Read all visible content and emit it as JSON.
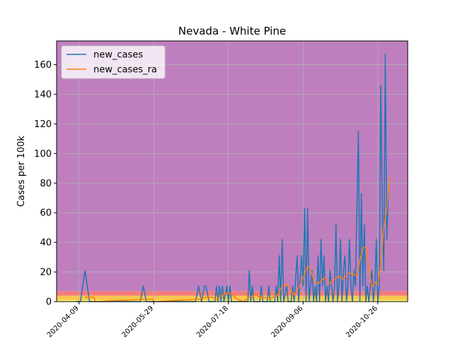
{
  "chart_data": {
    "type": "line",
    "title": "Nevada - White Pine",
    "xlabel": "",
    "ylabel": "Cases per 100k",
    "x_range": [
      "2020-03-25",
      "2020-11-15"
    ],
    "ylim": [
      0,
      176
    ],
    "x_ticks": [
      "2020-04-09",
      "2020-05-29",
      "2020-07-18",
      "2020-09-06",
      "2020-10-26"
    ],
    "y_ticks": [
      0,
      20,
      40,
      60,
      80,
      100,
      120,
      140,
      160
    ],
    "grid": true,
    "legend_position": "top-left",
    "background_bands": [
      {
        "from": 0,
        "to": 1,
        "color": "#ffff66"
      },
      {
        "from": 1,
        "to": 4,
        "color": "#f9c74f"
      },
      {
        "from": 4,
        "to": 7,
        "color": "#f47a7a"
      },
      {
        "from": 7,
        "to": 176,
        "color": "#bf7fbf"
      }
    ],
    "series": [
      {
        "name": "new_cases",
        "color": "#1f77b4",
        "points": [
          [
            "2020-04-07",
            0
          ],
          [
            "2020-04-10",
            0
          ],
          [
            "2020-04-13",
            21
          ],
          [
            "2020-04-16",
            0
          ],
          [
            "2020-05-20",
            0
          ],
          [
            "2020-05-22",
            10.5
          ],
          [
            "2020-05-24",
            0
          ],
          [
            "2020-06-26",
            0
          ],
          [
            "2020-06-28",
            10.5
          ],
          [
            "2020-06-30",
            0
          ],
          [
            "2020-07-02",
            10.5
          ],
          [
            "2020-07-03",
            10.5
          ],
          [
            "2020-07-05",
            0
          ],
          [
            "2020-07-09",
            0
          ],
          [
            "2020-07-10",
            10.5
          ],
          [
            "2020-07-11",
            0
          ],
          [
            "2020-07-12",
            10.5
          ],
          [
            "2020-07-13",
            0
          ],
          [
            "2020-07-14",
            10.5
          ],
          [
            "2020-07-15",
            0
          ],
          [
            "2020-07-17",
            10.5
          ],
          [
            "2020-07-18",
            0
          ],
          [
            "2020-07-19",
            10.5
          ],
          [
            "2020-07-20",
            0
          ],
          [
            "2020-07-31",
            0
          ],
          [
            "2020-08-01",
            21
          ],
          [
            "2020-08-02",
            0
          ],
          [
            "2020-08-03",
            10.5
          ],
          [
            "2020-08-04",
            0
          ],
          [
            "2020-08-08",
            0
          ],
          [
            "2020-08-09",
            10.5
          ],
          [
            "2020-08-10",
            0
          ],
          [
            "2020-08-13",
            0
          ],
          [
            "2020-08-14",
            10.5
          ],
          [
            "2020-08-15",
            0
          ],
          [
            "2020-08-18",
            0
          ],
          [
            "2020-08-19",
            10.5
          ],
          [
            "2020-08-20",
            0
          ],
          [
            "2020-08-21",
            31
          ],
          [
            "2020-08-22",
            0
          ],
          [
            "2020-08-23",
            42
          ],
          [
            "2020-08-24",
            0
          ],
          [
            "2020-08-26",
            10.5
          ],
          [
            "2020-08-27",
            0
          ],
          [
            "2020-08-29",
            0
          ],
          [
            "2020-08-30",
            10.5
          ],
          [
            "2020-08-31",
            0
          ],
          [
            "2020-09-02",
            31
          ],
          [
            "2020-09-03",
            0
          ],
          [
            "2020-09-05",
            31
          ],
          [
            "2020-09-06",
            10.5
          ],
          [
            "2020-09-07",
            63
          ],
          [
            "2020-09-08",
            0
          ],
          [
            "2020-09-09",
            63
          ],
          [
            "2020-09-10",
            0
          ],
          [
            "2020-09-12",
            21
          ],
          [
            "2020-09-13",
            0
          ],
          [
            "2020-09-14",
            10.5
          ],
          [
            "2020-09-15",
            0
          ],
          [
            "2020-09-16",
            31
          ],
          [
            "2020-09-17",
            0
          ],
          [
            "2020-09-18",
            42
          ],
          [
            "2020-09-19",
            10.5
          ],
          [
            "2020-09-20",
            31
          ],
          [
            "2020-09-21",
            0
          ],
          [
            "2020-09-22",
            10.5
          ],
          [
            "2020-09-23",
            0
          ],
          [
            "2020-09-24",
            21
          ],
          [
            "2020-09-25",
            10.5
          ],
          [
            "2020-09-26",
            0
          ],
          [
            "2020-09-27",
            10.5
          ],
          [
            "2020-09-28",
            52
          ],
          [
            "2020-09-29",
            0
          ],
          [
            "2020-09-30",
            10.5
          ],
          [
            "2020-10-01",
            42
          ],
          [
            "2020-10-02",
            0
          ],
          [
            "2020-10-03",
            21
          ],
          [
            "2020-10-04",
            31
          ],
          [
            "2020-10-05",
            0
          ],
          [
            "2020-10-06",
            10.5
          ],
          [
            "2020-10-07",
            42
          ],
          [
            "2020-10-08",
            10.5
          ],
          [
            "2020-10-09",
            0
          ],
          [
            "2020-10-10",
            21
          ],
          [
            "2020-10-11",
            10.5
          ],
          [
            "2020-10-13",
            115
          ],
          [
            "2020-10-14",
            0
          ],
          [
            "2020-10-15",
            73
          ],
          [
            "2020-10-16",
            10.5
          ],
          [
            "2020-10-17",
            52
          ],
          [
            "2020-10-18",
            0
          ],
          [
            "2020-10-19",
            10.5
          ],
          [
            "2020-10-20",
            0
          ],
          [
            "2020-10-21",
            10.5
          ],
          [
            "2020-10-22",
            21
          ],
          [
            "2020-10-23",
            0
          ],
          [
            "2020-10-24",
            10.5
          ],
          [
            "2020-10-25",
            42
          ],
          [
            "2020-10-26",
            0
          ],
          [
            "2020-10-27",
            10.5
          ],
          [
            "2020-10-28",
            146
          ],
          [
            "2020-10-29",
            63
          ],
          [
            "2020-10-30",
            21
          ],
          [
            "2020-10-31",
            167
          ],
          [
            "2020-11-01",
            42
          ],
          [
            "2020-11-02",
            73
          ],
          [
            "2020-11-03",
            73
          ]
        ]
      },
      {
        "name": "new_cases_ra",
        "color": "#ff7f0e",
        "points": [
          [
            "2020-04-13",
            3
          ],
          [
            "2020-04-19",
            3
          ],
          [
            "2020-04-20",
            0
          ],
          [
            "2020-05-22",
            1.5
          ],
          [
            "2020-05-28",
            1.5
          ],
          [
            "2020-05-29",
            0
          ],
          [
            "2020-06-28",
            1.5
          ],
          [
            "2020-07-03",
            3
          ],
          [
            "2020-07-07",
            3
          ],
          [
            "2020-07-10",
            1.5
          ],
          [
            "2020-07-14",
            4.5
          ],
          [
            "2020-07-18",
            6
          ],
          [
            "2020-07-21",
            4.5
          ],
          [
            "2020-07-24",
            1.5
          ],
          [
            "2020-07-28",
            0
          ],
          [
            "2020-08-01",
            3
          ],
          [
            "2020-08-05",
            4.5
          ],
          [
            "2020-08-08",
            3
          ],
          [
            "2020-08-11",
            3
          ],
          [
            "2020-08-14",
            1.5
          ],
          [
            "2020-08-17",
            3
          ],
          [
            "2020-08-20",
            4.5
          ],
          [
            "2020-08-23",
            10.5
          ],
          [
            "2020-08-25",
            12
          ],
          [
            "2020-08-28",
            9
          ],
          [
            "2020-08-31",
            4.5
          ],
          [
            "2020-09-03",
            9
          ],
          [
            "2020-09-06",
            16
          ],
          [
            "2020-09-09",
            24
          ],
          [
            "2020-09-11",
            22
          ],
          [
            "2020-09-13",
            15
          ],
          [
            "2020-09-16",
            12
          ],
          [
            "2020-09-19",
            15
          ],
          [
            "2020-09-21",
            16
          ],
          [
            "2020-09-24",
            12
          ],
          [
            "2020-09-27",
            15
          ],
          [
            "2020-09-30",
            17
          ],
          [
            "2020-10-03",
            15
          ],
          [
            "2020-10-06",
            19
          ],
          [
            "2020-10-09",
            19
          ],
          [
            "2020-10-12",
            17
          ],
          [
            "2020-10-14",
            28
          ],
          [
            "2020-10-16",
            36
          ],
          [
            "2020-10-18",
            37
          ],
          [
            "2020-10-20",
            22
          ],
          [
            "2020-10-22",
            10
          ],
          [
            "2020-10-24",
            13
          ],
          [
            "2020-10-26",
            12
          ],
          [
            "2020-10-28",
            25
          ],
          [
            "2020-10-30",
            50
          ],
          [
            "2020-11-01",
            62
          ],
          [
            "2020-11-03",
            84
          ]
        ]
      }
    ]
  }
}
